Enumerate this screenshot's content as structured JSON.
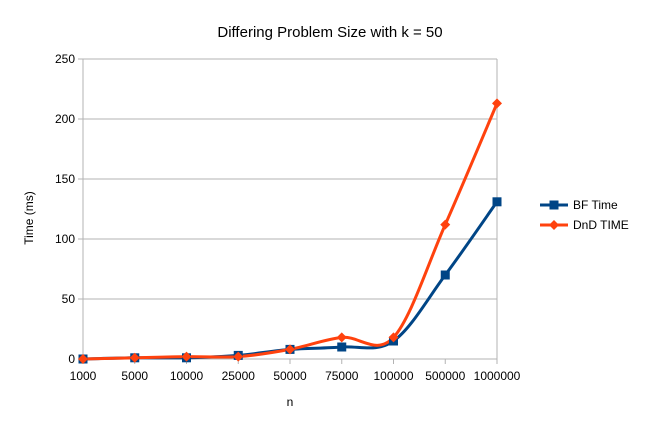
{
  "chart_data": {
    "type": "line",
    "title": "Differing Problem Size with k = 50",
    "xlabel": "n",
    "ylabel": "Time (ms)",
    "categories": [
      "1000",
      "5000",
      "10000",
      "25000",
      "50000",
      "75000",
      "100000",
      "500000",
      "1000000"
    ],
    "ylim": [
      0,
      250
    ],
    "yticks": [
      0,
      50,
      100,
      150,
      200,
      250
    ],
    "grid": "horizontal",
    "smooth": true,
    "legend_position": "right",
    "series": [
      {
        "name": "BF Time",
        "color": "#004586",
        "marker": "square",
        "values": [
          0,
          1,
          1,
          3,
          8,
          10,
          15,
          70,
          131
        ]
      },
      {
        "name": "DnD TIME",
        "color": "#ff420e",
        "marker": "diamond",
        "values": [
          0,
          1,
          2,
          2,
          8,
          18,
          18,
          112,
          213
        ]
      }
    ]
  }
}
